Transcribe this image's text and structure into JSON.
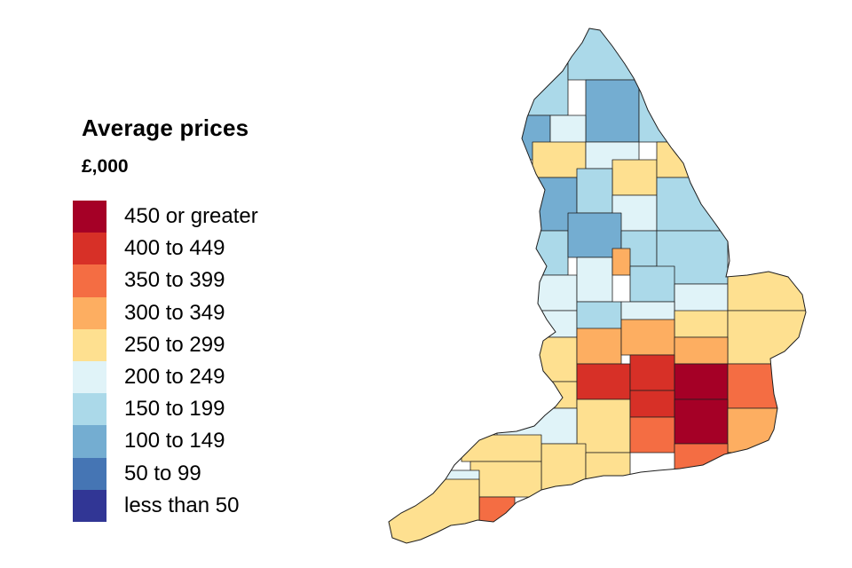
{
  "legend": {
    "title": "Average prices",
    "unit": "£,000",
    "items": [
      {
        "label": "450 or greater",
        "color": "#a50026"
      },
      {
        "label": "400 to 449",
        "color": "#d73027"
      },
      {
        "label": "350 to 399",
        "color": "#f46d43"
      },
      {
        "label": "300 to 349",
        "color": "#fdae61"
      },
      {
        "label": "250 to 299",
        "color": "#fee090"
      },
      {
        "label": "200 to 249",
        "color": "#e0f3f8"
      },
      {
        "label": "150 to 199",
        "color": "#abd9e9"
      },
      {
        "label": "100 to 149",
        "color": "#74add1"
      },
      {
        "label": "50 to 99",
        "color": "#4575b4"
      },
      {
        "label": "less than 50",
        "color": "#313695"
      }
    ]
  }
}
